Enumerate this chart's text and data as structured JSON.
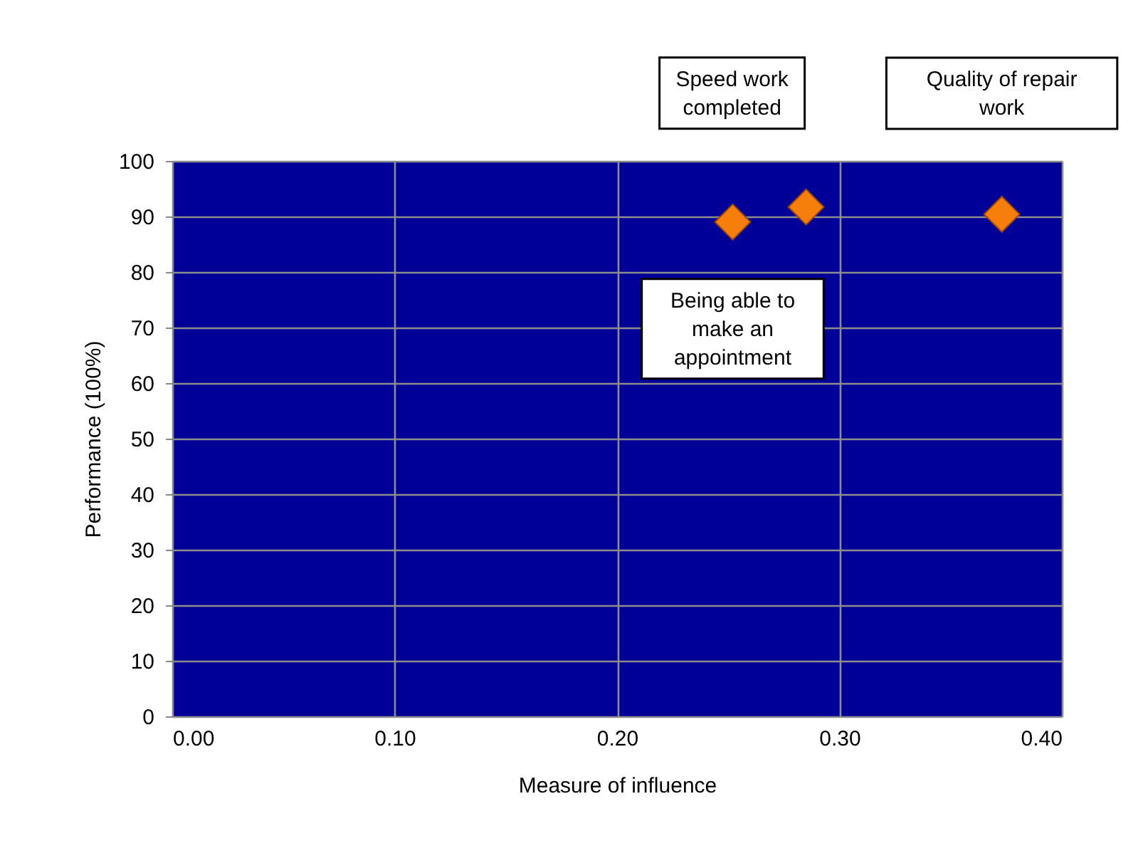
{
  "chart_data": {
    "type": "scatter",
    "xlabel": "Measure of influence",
    "ylabel": "Performance (100%)",
    "x": [
      0.252,
      0.285,
      0.373
    ],
    "series": [
      {
        "color": "#f57f0a",
        "values": [
          89.0,
          91.7,
          90.4
        ]
      }
    ],
    "annotations": [
      "Being able to make an appointment",
      "Speed work completed",
      "Quality of repair work"
    ],
    "xlim": [
      0,
      0.4
    ],
    "xticks": [
      {
        "value": 0,
        "label": "0.00"
      },
      {
        "value": 0.1,
        "label": "0.10"
      },
      {
        "value": 0.2,
        "label": "0.20"
      },
      {
        "value": 0.3,
        "label": "0.30"
      },
      {
        "value": 0.4,
        "label": "0.40"
      }
    ],
    "ylim": [
      0,
      100
    ],
    "yticks": [
      0,
      10,
      20,
      30,
      40,
      50,
      60,
      70,
      80,
      90,
      100
    ],
    "grid": true,
    "marker": "diamond"
  }
}
